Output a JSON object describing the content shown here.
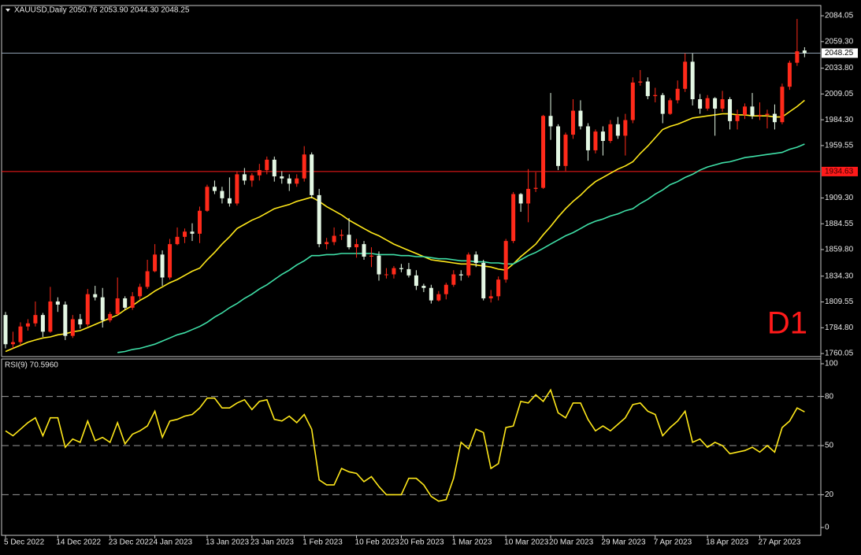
{
  "chart_data": [
    {
      "type": "candlestick",
      "header": "XAUUSD,Daily  2050.76 2053.90 2044.30 2048.25",
      "watermark": "D1",
      "watermark_color": "#ff1a1a",
      "up_color": "#ff2a1a",
      "down_color": "#e3f7e3",
      "categories": [
        "5 Dec 2022",
        null,
        null,
        null,
        null,
        null,
        null,
        "14 Dec 2022",
        null,
        null,
        null,
        null,
        null,
        null,
        "23 Dec 2022",
        null,
        null,
        null,
        null,
        null,
        "4 Jan 2023",
        null,
        null,
        null,
        null,
        null,
        null,
        "13 Jan 2023",
        null,
        null,
        null,
        null,
        null,
        "23 Jan 2023",
        null,
        null,
        null,
        null,
        null,
        null,
        "1 Feb 2023",
        null,
        null,
        null,
        null,
        null,
        null,
        "10 Feb 2023",
        null,
        null,
        null,
        null,
        null,
        "20 Feb 2023",
        null,
        null,
        null,
        null,
        null,
        null,
        "1 Mar 2023",
        null,
        null,
        null,
        null,
        null,
        null,
        "10 Mar 2023",
        null,
        null,
        null,
        null,
        null,
        "20 Mar 2023",
        null,
        null,
        null,
        null,
        null,
        null,
        "29 Mar 2023",
        null,
        null,
        null,
        null,
        null,
        null,
        "7 Apr 2023",
        null,
        null,
        null,
        null,
        null,
        null,
        "18 Apr 2023",
        null,
        null,
        null,
        null,
        null,
        null,
        "27 Apr 2023",
        null,
        null,
        null,
        null,
        null,
        null
      ],
      "open": [
        1797,
        1769,
        1771,
        1786,
        1789,
        1797,
        1781,
        1810,
        1807,
        1777,
        1793,
        1788,
        1817,
        1814,
        1792,
        1798,
        1813,
        1804,
        1815,
        1824,
        1839,
        1855,
        1833,
        1865,
        1872,
        1877,
        1875,
        1897,
        1920,
        1916,
        1909,
        1904,
        1932,
        1926,
        1931,
        1936,
        1946,
        1930,
        1928,
        1923,
        1928,
        1951,
        1912,
        1865,
        1867,
        1873,
        1874,
        1862,
        1865,
        1853,
        1854,
        1836,
        1836,
        1842,
        1841,
        1835,
        1825,
        1823,
        1811,
        1817,
        1826,
        1836,
        1835,
        1855,
        1847,
        1813,
        1815,
        1831,
        1868,
        1913,
        1904,
        1918,
        1919,
        1988,
        1978,
        1940,
        1970,
        1993,
        1978,
        1955,
        1973,
        1964,
        1980,
        1969,
        1984,
        2020,
        2021,
        2007,
        2008,
        1990,
        2003,
        2014,
        2040,
        2004,
        1995,
        2005,
        1995,
        2004,
        1983,
        1989,
        1997,
        1988,
        1989,
        1990,
        1982,
        2016,
        2039,
        2050.76
      ],
      "high": [
        1800,
        1781,
        1790,
        1793,
        1810,
        1799,
        1824,
        1814,
        1810,
        1797,
        1798,
        1822,
        1825,
        1823,
        1800,
        1833,
        1815,
        1819,
        1827,
        1850,
        1865,
        1859,
        1870,
        1881,
        1880,
        1885,
        1901,
        1922,
        1926,
        1920,
        1929,
        1935,
        1938,
        1933,
        1942,
        1949,
        1949,
        1935,
        1932,
        1932,
        1959,
        1953,
        1918,
        1871,
        1881,
        1879,
        1890,
        1870,
        1868,
        1862,
        1858,
        1842,
        1844,
        1846,
        1847,
        1840,
        1827,
        1826,
        1820,
        1828,
        1840,
        1840,
        1857,
        1858,
        1850,
        1821,
        1834,
        1870,
        1915,
        1914,
        1937,
        1934,
        1989,
        2010,
        1980,
        1972,
        2004,
        2003,
        1981,
        1975,
        1978,
        1984,
        1987,
        1990,
        2025,
        2032,
        2025,
        2015,
        2010,
        2005,
        2022,
        2048,
        2048,
        2009,
        2008,
        2006,
        2012,
        2006,
        1994,
        2000,
        2010,
        2001,
        1994,
        1999,
        2019,
        2041,
        2081,
        2053.9
      ],
      "low": [
        1765,
        1765,
        1768,
        1782,
        1786,
        1776,
        1780,
        1800,
        1773,
        1775,
        1784,
        1786,
        1811,
        1785,
        1790,
        1797,
        1802,
        1802,
        1812,
        1822,
        1838,
        1825,
        1831,
        1864,
        1866,
        1868,
        1866,
        1896,
        1913,
        1904,
        1901,
        1902,
        1922,
        1920,
        1926,
        1932,
        1925,
        1923,
        1916,
        1920,
        1925,
        1909,
        1862,
        1860,
        1864,
        1869,
        1860,
        1852,
        1850,
        1843,
        1830,
        1832,
        1832,
        1838,
        1833,
        1821,
        1819,
        1808,
        1810,
        1812,
        1824,
        1830,
        1833,
        1843,
        1811,
        1809,
        1811,
        1828,
        1866,
        1896,
        1886,
        1915,
        1918,
        1965,
        1936,
        1935,
        1966,
        1975,
        1945,
        1952,
        1950,
        1962,
        1966,
        1950,
        1981,
        2017,
        2004,
        2001,
        1981,
        1989,
        2000,
        2011,
        1998,
        1990,
        1993,
        1969,
        1992,
        1975,
        1975,
        1985,
        1985,
        1984,
        1976,
        1975,
        1980,
        2013,
        2036,
        2044.3
      ],
      "close": [
        1769,
        1771,
        1786,
        1789,
        1797,
        1781,
        1810,
        1807,
        1777,
        1793,
        1788,
        1817,
        1814,
        1792,
        1798,
        1813,
        1804,
        1815,
        1824,
        1839,
        1855,
        1833,
        1865,
        1872,
        1877,
        1875,
        1897,
        1920,
        1916,
        1909,
        1904,
        1932,
        1926,
        1931,
        1936,
        1946,
        1930,
        1928,
        1923,
        1928,
        1951,
        1912,
        1865,
        1867,
        1873,
        1874,
        1862,
        1865,
        1853,
        1854,
        1836,
        1836,
        1842,
        1841,
        1835,
        1825,
        1823,
        1811,
        1817,
        1826,
        1836,
        1835,
        1855,
        1847,
        1813,
        1815,
        1831,
        1868,
        1913,
        1904,
        1918,
        1919,
        1988,
        1978,
        1940,
        1970,
        1993,
        1978,
        1955,
        1973,
        1964,
        1980,
        1969,
        1984,
        2020,
        2021,
        2007,
        2008,
        1990,
        2003,
        2014,
        2040,
        2004,
        1995,
        2005,
        1995,
        2004,
        1983,
        1989,
        1997,
        1988,
        1989,
        1990,
        1982,
        2016,
        2039,
        2050,
        2048.25
      ],
      "series": [
        {
          "color": "#ffe81a",
          "values": [
            1762,
            1765,
            1768,
            1771,
            1773,
            1775,
            1776,
            1778,
            1779,
            1781,
            1782,
            1785,
            1788,
            1791,
            1794,
            1797,
            1802,
            1806,
            1811,
            1815,
            1820,
            1824,
            1828,
            1831,
            1835,
            1839,
            1842,
            1850,
            1857,
            1865,
            1872,
            1880,
            1884,
            1888,
            1891,
            1895,
            1899,
            1901,
            1903,
            1906,
            1908,
            1910,
            1906,
            1901,
            1897,
            1893,
            1888,
            1884,
            1880,
            1876,
            1873,
            1869,
            1865,
            1862,
            1859,
            1856,
            1853,
            1850,
            1849,
            1848,
            1847,
            1846,
            1846,
            1845,
            1844,
            1843,
            1841,
            1840,
            1846,
            1853,
            1859,
            1865,
            1874,
            1882,
            1891,
            1899,
            1906,
            1912,
            1919,
            1925,
            1929,
            1933,
            1937,
            1940,
            1944,
            1952,
            1959,
            1967,
            1975,
            1978,
            1980,
            1983,
            1986,
            1987,
            1988,
            1989,
            1990,
            1990,
            1989,
            1989,
            1988,
            1988,
            1988,
            1987,
            1987,
            1992,
            1997,
            2003
          ]
        },
        {
          "color": "#3fe0a8",
          "values": [
            null,
            null,
            null,
            null,
            null,
            null,
            null,
            null,
            null,
            null,
            null,
            null,
            null,
            null,
            null,
            1761,
            1762,
            1764,
            1765,
            1767,
            1769,
            1772,
            1775,
            1778,
            1780,
            1783,
            1786,
            1790,
            1795,
            1799,
            1804,
            1808,
            1813,
            1817,
            1822,
            1826,
            1831,
            1836,
            1840,
            1845,
            1849,
            1854,
            1854,
            1855,
            1855,
            1856,
            1856,
            1856,
            1856,
            1856,
            1855,
            1855,
            1855,
            1854,
            1854,
            1853,
            1853,
            1852,
            1851,
            1851,
            1850,
            1849,
            1849,
            1848,
            1848,
            1847,
            1847,
            1846,
            1846,
            1850,
            1854,
            1857,
            1861,
            1865,
            1869,
            1873,
            1876,
            1880,
            1884,
            1887,
            1889,
            1892,
            1894,
            1897,
            1899,
            1904,
            1908,
            1913,
            1917,
            1922,
            1925,
            1929,
            1932,
            1936,
            1939,
            1941,
            1943,
            1944,
            1946,
            1948,
            1949,
            1950,
            1951,
            1952,
            1953,
            1956,
            1958,
            1961
          ]
        }
      ],
      "bid_line": 2048.25,
      "bid_line_color": "#8fa0b0",
      "level_line": 1934.63,
      "level_color": "#ff1a1a",
      "ylim": [
        1757.1,
        2093.9
      ],
      "yticks": [
        2084.05,
        {
          "value": 2059.3,
          "label": "2059.30"
        },
        {
          "value": 2033.8,
          "label": "2033.80"
        },
        2009.05,
        {
          "value": 1984.3,
          "label": "1984.30"
        },
        1959.55,
        {
          "value": 1909.3,
          "label": "1909.30"
        },
        1884.55,
        {
          "value": 1859.8,
          "label": "1859.80"
        },
        {
          "value": 1834.3,
          "label": "1834.30"
        },
        1809.55,
        {
          "value": 1784.8,
          "label": "1784.80"
        },
        1760.05
      ]
    },
    {
      "type": "line",
      "title": "RSI(9) 70.5960",
      "series": [
        {
          "color": "#ffe81a",
          "values": [
            59,
            56,
            60,
            64,
            67,
            56,
            67,
            67,
            49,
            54,
            52,
            65,
            53,
            55,
            52,
            64,
            51,
            57,
            59,
            62,
            71,
            55,
            65,
            66,
            68,
            69,
            73,
            79,
            79,
            73,
            73,
            76,
            78,
            72,
            77,
            78,
            66,
            65,
            68,
            64,
            69,
            60,
            29,
            26,
            26,
            36,
            34,
            33,
            28,
            31,
            25,
            20,
            20,
            20,
            30,
            30,
            26,
            19,
            16,
            17,
            30,
            52,
            48,
            60,
            58,
            36,
            39,
            61,
            62,
            77,
            76,
            81,
            77,
            84,
            70,
            67,
            76,
            76,
            66,
            59,
            62,
            59,
            63,
            67,
            75,
            76,
            71,
            69,
            56,
            61,
            65,
            71,
            52,
            54,
            49,
            52,
            50,
            45,
            46,
            47,
            49,
            46,
            50,
            46,
            61,
            65,
            73,
            70.596
          ]
        }
      ],
      "ylim": [
        -4.8,
        102.9
      ],
      "yticks": [
        0,
        20,
        50,
        80,
        100
      ],
      "levels": [
        20,
        50,
        80
      ]
    }
  ]
}
